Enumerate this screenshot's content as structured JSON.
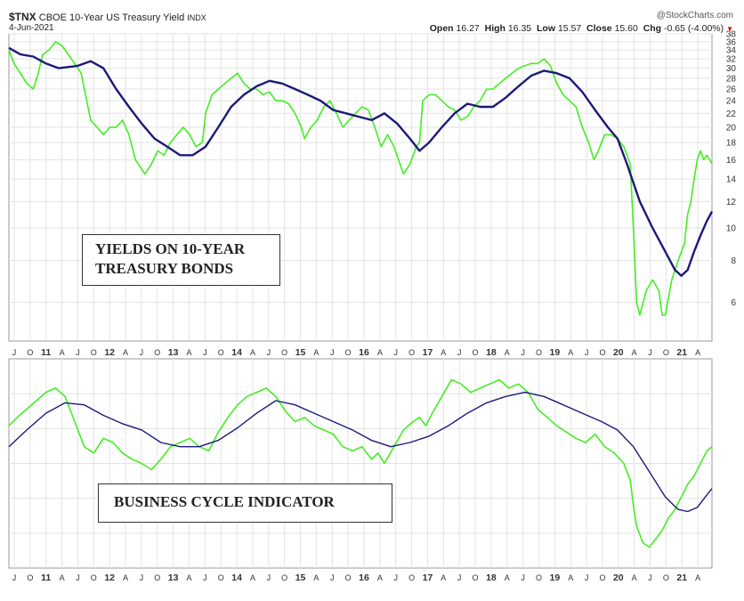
{
  "header": {
    "symbol": "$TNX",
    "title": "CBOE 10-Year US Treasury Yield",
    "exchange": "INDX",
    "date": "4-Jun-2021",
    "brand": "@StockCharts.com",
    "open_label": "Open",
    "open": "16.27",
    "high_label": "High",
    "high": "16.35",
    "low_label": "Low",
    "low": "15.57",
    "close_label": "Close",
    "close": "15.60",
    "chg_label": "Chg",
    "chg": "-0.65 (-4.00%)",
    "chg_marker": "▼",
    "chg_color": "#cc0000"
  },
  "annotations": {
    "top_box_line1": "YIELDS ON 10-YEAR",
    "top_box_line2": "TREASURY BONDS",
    "bottom_box": "BUSINESS CYCLE INDICATOR"
  },
  "colors": {
    "price": "#44ee22",
    "average": "#1c1a7a",
    "grid": "#e3e3e3"
  },
  "chart_data": [
    {
      "type": "line",
      "y_scale": "log",
      "ylim": [
        4.6,
        38
      ],
      "y_ticks": [
        6,
        8,
        10,
        12,
        14,
        16,
        18,
        20,
        22,
        24,
        26,
        28,
        30,
        32,
        34,
        36,
        38
      ],
      "x_range": [
        2010.42,
        2021.43
      ],
      "x_tick_labels": [
        "J",
        "O",
        "11",
        "A",
        "J",
        "O",
        "12",
        "A",
        "J",
        "O",
        "13",
        "A",
        "J",
        "O",
        "14",
        "A",
        "J",
        "O",
        "15",
        "A",
        "J",
        "O",
        "16",
        "A",
        "J",
        "O",
        "17",
        "A",
        "J",
        "O",
        "18",
        "A",
        "J",
        "O",
        "19",
        "A",
        "J",
        "O",
        "20",
        "A",
        "J",
        "O",
        "21",
        "A"
      ],
      "series": [
        {
          "role": "price",
          "x": [
            2010.42,
            2010.5,
            2010.6,
            2010.7,
            2010.8,
            2010.88,
            2010.95,
            2011.05,
            2011.15,
            2011.25,
            2011.35,
            2011.45,
            2011.55,
            2011.62,
            2011.7,
            2011.8,
            2011.9,
            2012.0,
            2012.1,
            2012.2,
            2012.3,
            2012.4,
            2012.5,
            2012.55,
            2012.65,
            2012.75,
            2012.85,
            2012.95,
            2013.05,
            2013.15,
            2013.25,
            2013.35,
            2013.45,
            2013.5,
            2013.6,
            2013.7,
            2013.8,
            2013.9,
            2014.0,
            2014.1,
            2014.2,
            2014.3,
            2014.4,
            2014.5,
            2014.6,
            2014.7,
            2014.8,
            2014.9,
            2015.0,
            2015.05,
            2015.15,
            2015.25,
            2015.35,
            2015.45,
            2015.55,
            2015.65,
            2015.75,
            2015.85,
            2015.95,
            2016.05,
            2016.15,
            2016.25,
            2016.35,
            2016.45,
            2016.52,
            2016.6,
            2016.7,
            2016.8,
            2016.85,
            2016.9,
            2017.0,
            2017.1,
            2017.2,
            2017.3,
            2017.4,
            2017.5,
            2017.6,
            2017.7,
            2017.8,
            2017.9,
            2018.0,
            2018.1,
            2018.2,
            2018.3,
            2018.4,
            2018.5,
            2018.6,
            2018.7,
            2018.8,
            2018.9,
            2019.0,
            2019.1,
            2019.2,
            2019.3,
            2019.4,
            2019.5,
            2019.58,
            2019.65,
            2019.75,
            2019.85,
            2019.95,
            2020.05,
            2020.15,
            2020.2,
            2020.25,
            2020.3,
            2020.4,
            2020.5,
            2020.6,
            2020.65,
            2020.7,
            2020.8,
            2020.9,
            2021.0,
            2021.05,
            2021.1,
            2021.15,
            2021.2,
            2021.25,
            2021.3,
            2021.35,
            2021.43
          ],
          "y": [
            34,
            31,
            29,
            27,
            26,
            29,
            33,
            34,
            36,
            35,
            33,
            31,
            29,
            25,
            21,
            20,
            19,
            20,
            20,
            21,
            19,
            16,
            15,
            14.5,
            15.5,
            17,
            16.5,
            18,
            19,
            20,
            19,
            17.5,
            18,
            22,
            25,
            26,
            27,
            28,
            29,
            27,
            26,
            26,
            25,
            25.5,
            24,
            24,
            23.5,
            22,
            20,
            18.5,
            20,
            21,
            23,
            24,
            22,
            20,
            21,
            22,
            23,
            22.5,
            20,
            17.5,
            19,
            17.5,
            16,
            14.5,
            15.5,
            17.5,
            18,
            24,
            25,
            25,
            24,
            23,
            22.5,
            21,
            21.5,
            23,
            24,
            26,
            26,
            27,
            28,
            29,
            30,
            30.5,
            31,
            31,
            32,
            30.5,
            27,
            25,
            24,
            23,
            20,
            18,
            16,
            17,
            19,
            19,
            18.5,
            17.5,
            15.5,
            10,
            6,
            5.5,
            6.5,
            7,
            6.5,
            5.5,
            5.5,
            7,
            8,
            9,
            11,
            12,
            14,
            16,
            17,
            16,
            16.5,
            15.6
          ]
        },
        {
          "role": "moving-average",
          "x": [
            2010.42,
            2010.6,
            2010.8,
            2011.0,
            2011.2,
            2011.5,
            2011.7,
            2011.9,
            2012.1,
            2012.3,
            2012.5,
            2012.7,
            2012.9,
            2013.1,
            2013.3,
            2013.5,
            2013.7,
            2013.9,
            2014.1,
            2014.3,
            2014.5,
            2014.7,
            2014.9,
            2015.1,
            2015.3,
            2015.5,
            2015.7,
            2015.9,
            2016.1,
            2016.3,
            2016.5,
            2016.7,
            2016.85,
            2017.0,
            2017.2,
            2017.4,
            2017.6,
            2017.8,
            2018.0,
            2018.2,
            2018.4,
            2018.6,
            2018.8,
            2019.0,
            2019.2,
            2019.4,
            2019.6,
            2019.8,
            2019.95,
            2020.1,
            2020.3,
            2020.5,
            2020.7,
            2020.85,
            2020.95,
            2021.05,
            2021.15,
            2021.25,
            2021.35,
            2021.43
          ],
          "y": [
            34.5,
            33,
            32.5,
            31,
            30,
            30.5,
            31.5,
            30,
            26,
            23,
            20.5,
            18.5,
            17.5,
            16.5,
            16.5,
            17.5,
            20,
            23,
            25,
            26.5,
            27.5,
            27,
            26,
            25,
            24,
            22.5,
            22,
            21.5,
            21,
            22,
            20.5,
            18.5,
            17,
            18,
            20,
            22,
            23.5,
            23,
            23,
            24.5,
            26.5,
            28.5,
            29.5,
            29,
            28,
            25.5,
            22.5,
            20,
            18.5,
            15.5,
            12,
            10,
            8.5,
            7.5,
            7.2,
            7.5,
            8.5,
            9.5,
            10.5,
            11.2
          ]
        }
      ]
    },
    {
      "type": "line",
      "ylim": [
        0,
        100
      ],
      "x_range": [
        2010.42,
        2021.43
      ],
      "x_tick_labels": [
        "J",
        "O",
        "11",
        "A",
        "J",
        "O",
        "12",
        "A",
        "J",
        "O",
        "13",
        "A",
        "J",
        "O",
        "14",
        "A",
        "J",
        "O",
        "15",
        "A",
        "J",
        "O",
        "16",
        "A",
        "J",
        "O",
        "17",
        "A",
        "J",
        "O",
        "18",
        "A",
        "J",
        "O",
        "19",
        "A",
        "J",
        "O",
        "20",
        "A",
        "J",
        "O",
        "21",
        "A"
      ],
      "series": [
        {
          "role": "price",
          "x": [
            2010.42,
            2010.55,
            2010.7,
            2010.85,
            2011.0,
            2011.15,
            2011.3,
            2011.45,
            2011.6,
            2011.75,
            2011.9,
            2012.05,
            2012.2,
            2012.35,
            2012.5,
            2012.65,
            2012.8,
            2012.95,
            2013.1,
            2013.25,
            2013.4,
            2013.55,
            2013.7,
            2013.85,
            2014.0,
            2014.15,
            2014.3,
            2014.45,
            2014.6,
            2014.75,
            2014.9,
            2015.05,
            2015.2,
            2015.35,
            2015.5,
            2015.65,
            2015.8,
            2015.95,
            2016.1,
            2016.2,
            2016.3,
            2016.45,
            2016.6,
            2016.75,
            2016.85,
            2016.95,
            2017.05,
            2017.2,
            2017.35,
            2017.5,
            2017.65,
            2017.8,
            2017.95,
            2018.1,
            2018.25,
            2018.4,
            2018.55,
            2018.7,
            2018.85,
            2019.0,
            2019.15,
            2019.3,
            2019.45,
            2019.6,
            2019.75,
            2019.9,
            2020.05,
            2020.15,
            2020.2,
            2020.25,
            2020.35,
            2020.45,
            2020.55,
            2020.65,
            2020.75,
            2020.85,
            2020.95,
            2021.05,
            2021.15,
            2021.25,
            2021.35,
            2021.43
          ],
          "y": [
            68,
            72,
            76,
            80,
            84,
            86,
            82,
            70,
            58,
            55,
            62,
            60,
            55,
            52,
            50,
            47,
            52,
            58,
            60,
            62,
            58,
            56,
            65,
            72,
            78,
            82,
            84,
            86,
            82,
            75,
            70,
            72,
            68,
            66,
            64,
            58,
            56,
            58,
            52,
            55,
            50,
            58,
            66,
            70,
            72,
            68,
            74,
            82,
            90,
            88,
            84,
            86,
            88,
            90,
            86,
            88,
            84,
            76,
            72,
            68,
            65,
            62,
            60,
            64,
            58,
            55,
            50,
            42,
            30,
            20,
            12,
            10,
            14,
            18,
            24,
            28,
            34,
            40,
            44,
            50,
            56,
            58
          ]
        },
        {
          "role": "moving-average",
          "x": [
            2010.42,
            2010.7,
            2011.0,
            2011.3,
            2011.6,
            2011.9,
            2012.2,
            2012.5,
            2012.8,
            2013.1,
            2013.4,
            2013.7,
            2014.0,
            2014.3,
            2014.6,
            2014.9,
            2015.2,
            2015.5,
            2015.8,
            2016.1,
            2016.4,
            2016.7,
            2017.0,
            2017.3,
            2017.6,
            2017.9,
            2018.2,
            2018.5,
            2018.8,
            2019.1,
            2019.4,
            2019.7,
            2019.95,
            2020.2,
            2020.45,
            2020.7,
            2020.9,
            2021.05,
            2021.2,
            2021.35,
            2021.43
          ],
          "y": [
            58,
            66,
            74,
            79,
            78,
            73,
            69,
            66,
            60,
            58,
            58,
            61,
            67,
            74,
            80,
            78,
            74,
            70,
            66,
            61,
            58,
            60,
            63,
            68,
            74,
            79,
            82,
            84,
            82,
            78,
            74,
            70,
            66,
            58,
            46,
            34,
            28,
            27,
            29,
            35,
            38
          ]
        }
      ]
    }
  ]
}
